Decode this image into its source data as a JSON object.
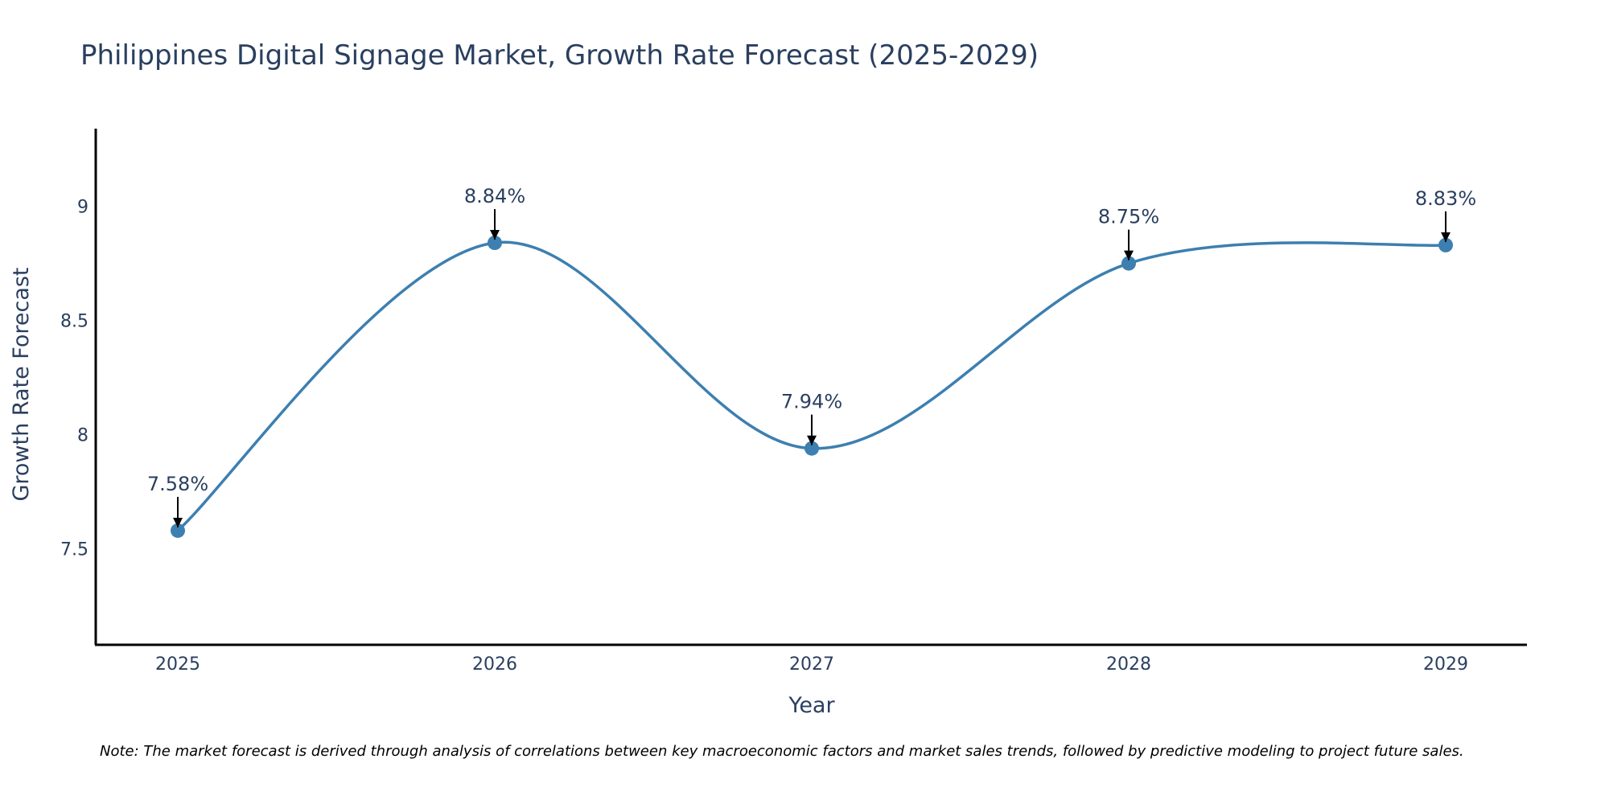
{
  "chart_data": {
    "type": "line",
    "title": "Philippines Digital Signage Market, Growth Rate Forecast (2025-2029)",
    "xlabel": "Year",
    "ylabel": "Growth Rate Forecast",
    "categories": [
      "2025",
      "2026",
      "2027",
      "2028",
      "2029"
    ],
    "series": [
      {
        "name": "Growth Rate Forecast",
        "values": [
          7.58,
          8.84,
          7.94,
          8.75,
          8.83
        ],
        "labels": [
          "7.58%",
          "8.84%",
          "7.94%",
          "8.75%",
          "8.83%"
        ],
        "color": "#3d7fb0"
      }
    ],
    "ylim": [
      7.08,
      9.34
    ],
    "yticks": [
      7.5,
      8,
      8.5,
      9
    ],
    "ytick_labels": [
      "7.5",
      "8",
      "8.5",
      "9"
    ],
    "grid": false,
    "line_shape": "spline"
  },
  "note": "Note: The market forecast is derived through analysis of correlations between key macroeconomic factors and market sales trends, followed by predictive modeling to project future sales."
}
